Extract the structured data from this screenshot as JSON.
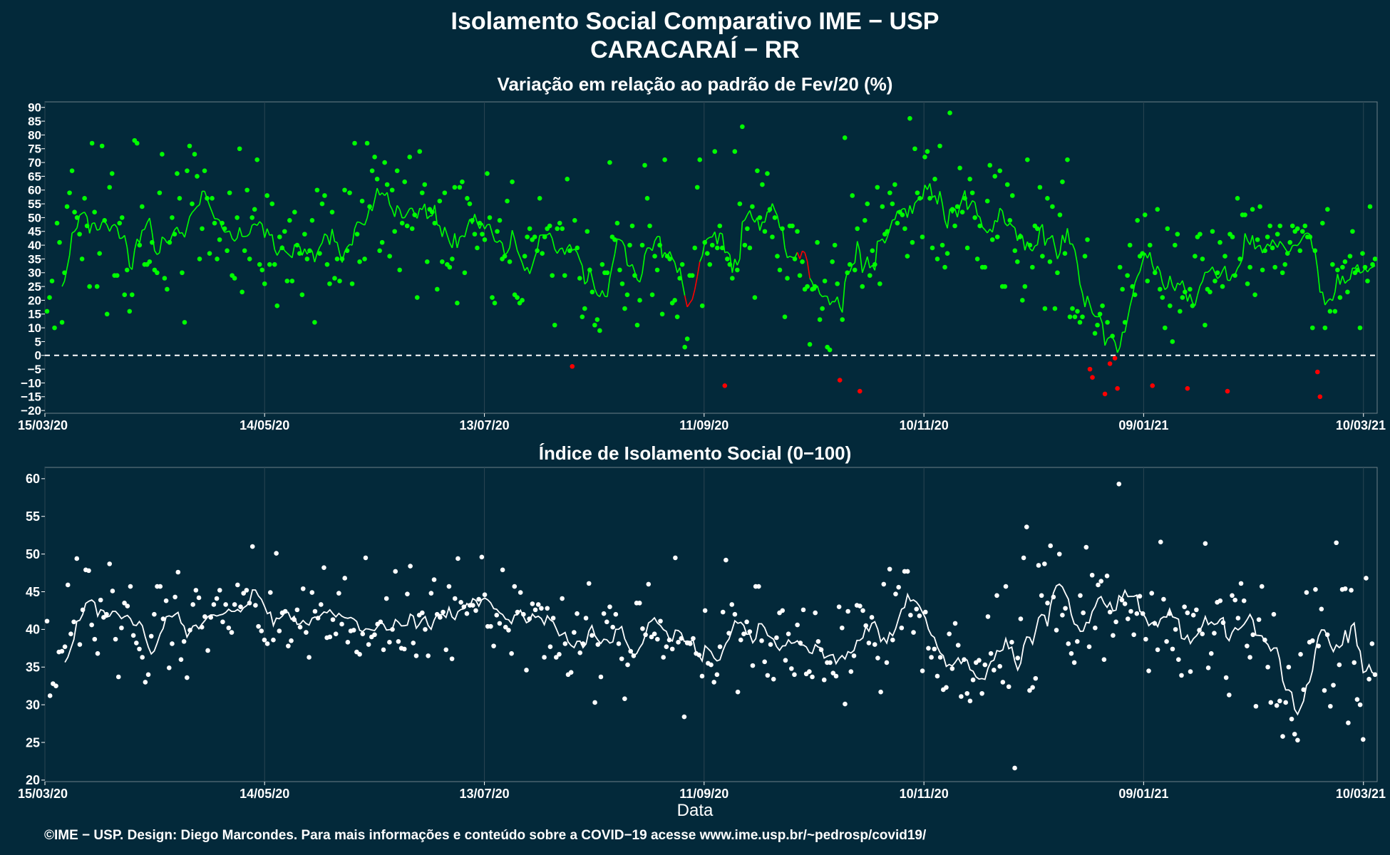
{
  "title_line1": "Isolamento Social Comparativo IME − USP",
  "title_line2": "CARACARAÍ − RR",
  "footer": "©IME − USP. Design: Diego Marcondes. Para mais informações e conteúdo sobre a COVID−19 acesse www.ime.usp.br/~pedrosp/covid19/",
  "colors": {
    "background": "#03293a",
    "positive": "#00ff00",
    "negative": "#ff0000",
    "index": "#ffffff",
    "grid": "#2b4552"
  },
  "chart_data": [
    {
      "type": "scatter",
      "title": "Variação em relação ao padrão de Fev/20 (%)",
      "xlabel": "",
      "ylabel": "",
      "x_start": "15/03/20",
      "x_end": "14/03/21",
      "xtick_labels": [
        "15/03/20",
        "14/05/20",
        "13/07/20",
        "11/09/20",
        "10/11/20",
        "09/01/21",
        "10/03/21"
      ],
      "yticks": [
        -20,
        -15,
        -10,
        -5,
        0,
        5,
        10,
        15,
        20,
        25,
        30,
        35,
        40,
        45,
        50,
        55,
        60,
        65,
        70,
        75,
        80,
        85,
        90
      ],
      "ylim": [
        -21,
        92
      ],
      "reference_line": 0,
      "values": [
        16,
        21,
        27,
        10,
        48,
        41,
        12,
        30,
        54,
        59,
        67,
        52,
        50,
        44,
        35,
        57,
        47,
        25,
        77,
        52,
        25,
        37,
        76,
        49,
        15,
        61,
        66,
        29,
        29,
        48,
        50,
        22,
        31,
        16,
        22,
        78,
        77,
        40,
        54,
        33,
        33,
        34,
        41,
        31,
        30,
        59,
        73,
        28,
        24,
        41,
        50,
        44,
        66,
        57,
        30,
        12,
        67,
        76,
        55,
        73,
        65,
        35,
        46,
        67,
        57,
        37,
        57,
        48,
        35,
        42,
        48,
        46,
        38,
        59,
        29,
        28,
        50,
        75,
        23,
        38,
        60,
        35,
        50,
        53,
        71,
        33,
        31,
        26,
        58,
        33,
        55,
        33,
        18,
        43,
        39,
        45,
        27,
        49,
        27,
        52,
        40,
        37,
        22,
        44,
        35,
        38,
        49,
        12,
        60,
        37,
        55,
        58,
        33,
        26,
        52,
        28,
        35,
        27,
        35,
        60,
        38,
        59,
        26,
        77,
        44,
        34,
        56,
        35,
        77,
        54,
        67,
        72,
        64,
        38,
        41,
        70,
        62,
        36,
        60,
        45,
        67,
        31,
        48,
        63,
        47,
        72,
        46,
        51,
        21,
        74,
        59,
        62,
        34,
        53,
        52,
        48,
        24,
        56,
        34,
        59,
        33,
        32,
        35,
        61,
        19,
        61,
        63,
        30,
        57,
        55,
        49,
        44,
        39,
        48,
        44,
        42,
        66,
        50,
        21,
        19,
        45,
        49,
        35,
        36,
        56,
        34,
        63,
        22,
        21,
        19,
        20,
        36,
        43,
        46,
        42,
        43,
        38,
        57,
        37,
        43,
        46,
        47,
        29,
        11,
        46,
        48,
        46,
        29,
        64,
        38,
        -4,
        49,
        39,
        28,
        14,
        17,
        45,
        31,
        23,
        11,
        13,
        9,
        33,
        30,
        30,
        70,
        43,
        42,
        48,
        31,
        26,
        17,
        22,
        40,
        47,
        29,
        11,
        20,
        40,
        69,
        57,
        47,
        22,
        36,
        31,
        40,
        15,
        71,
        36,
        35,
        19,
        20,
        14,
        28,
        33,
        3,
        6,
        29,
        29,
        39,
        61,
        71,
        18,
        41,
        37,
        33,
        40,
        74,
        39,
        47,
        39,
        -11,
        35,
        33,
        28,
        74,
        31,
        55,
        83,
        40,
        46,
        39,
        54,
        21,
        67,
        50,
        62,
        45,
        66,
        53,
        43,
        50,
        36,
        31,
        46,
        14,
        28,
        47,
        47,
        35,
        45,
        29,
        34,
        24,
        25,
        4,
        24,
        25,
        41,
        13,
        17,
        27,
        3,
        2,
        34,
        40,
        26,
        -9,
        13,
        79,
        30,
        33,
        58,
        31,
        46,
        -13,
        25,
        49,
        55,
        29,
        38,
        33,
        61,
        26,
        54,
        44,
        45,
        59,
        55,
        62,
        48,
        52,
        51,
        46,
        36,
        86,
        41,
        75,
        59,
        57,
        43,
        72,
        74,
        57,
        39,
        64,
        35,
        76,
        40,
        32,
        37,
        88,
        53,
        47,
        54,
        68,
        52,
        57,
        39,
        64,
        59,
        50,
        35,
        47,
        32,
        32,
        56,
        69,
        42,
        65,
        43,
        67,
        25,
        25,
        62,
        49,
        58,
        38,
        34,
        43,
        20,
        25,
        71,
        40,
        32,
        47,
        46,
        61,
        36,
        17,
        57,
        34,
        54,
        17,
        30,
        51,
        63,
        37,
        71,
        14,
        17,
        14,
        16,
        12,
        14,
        36,
        42,
        -5,
        -8,
        8,
        11,
        15,
        18,
        -14,
        12,
        -3,
        7,
        -1,
        -12,
        32,
        24,
        12,
        29,
        40,
        25,
        22,
        49,
        36,
        37,
        51,
        27,
        40,
        -11,
        30,
        53,
        24,
        21,
        10,
        46,
        18,
        5,
        40,
        44,
        16,
        21,
        23,
        -12,
        24,
        18,
        36,
        43,
        44,
        35,
        11,
        24,
        23,
        45,
        27,
        30,
        41,
        25,
        36,
        -13,
        44,
        43,
        29,
        57,
        35,
        51,
        51,
        26,
        32,
        53,
        22,
        42,
        54,
        31,
        38,
        43,
        47,
        39,
        32,
        44,
        47,
        30,
        33,
        37,
        41,
        47,
        45,
        46,
        38,
        45,
        47,
        43,
        43,
        10,
        38,
        -6,
        -15,
        48,
        10,
        53,
        16,
        33,
        16,
        31,
        21,
        32,
        34,
        23,
        36,
        45,
        30,
        31,
        10,
        37,
        32,
        27,
        54,
        33,
        35
      ]
    },
    {
      "type": "scatter",
      "title": "Índice de Isolamento Social (0−100)",
      "xlabel": "Data",
      "ylabel": "",
      "x_start": "15/03/20",
      "x_end": "14/03/21",
      "xtick_labels": [
        "15/03/20",
        "14/05/20",
        "13/07/20",
        "11/09/20",
        "10/11/20",
        "09/01/21",
        "10/03/21"
      ],
      "yticks": [
        20,
        25,
        30,
        35,
        40,
        45,
        50,
        55,
        60
      ],
      "ylim": [
        19.8,
        61.5
      ],
      "values": [
        41.1,
        31.2,
        32.8,
        32.5,
        37.0,
        37.1,
        37.7,
        45.9,
        39.4,
        41.0,
        49.4,
        38.0,
        42.6,
        47.9,
        47.8,
        40.6,
        38.7,
        36.8,
        43.9,
        41.6,
        42.0,
        48.7,
        45.1,
        38.7,
        33.7,
        40.2,
        43.5,
        43.1,
        45.7,
        39.2,
        38.2,
        37.4,
        36.3,
        33.0,
        34.0,
        39.1,
        42.0,
        45.7,
        45.7,
        41.4,
        43.8,
        34.9,
        38.1,
        44.3,
        47.6,
        36.0,
        38.4,
        33.6,
        39.9,
        43.3,
        45.2,
        44.2,
        40.3,
        41.7,
        37.2,
        41.6,
        43.3,
        44.1,
        45.2,
        41.0,
        43.3,
        40.2,
        39.6,
        43.3,
        45.9,
        43.0,
        44.8,
        45.2,
        43.5,
        51.0,
        43.2,
        40.4,
        39.8,
        38.6,
        38.1,
        44.9,
        38.6,
        50.1,
        39.8,
        42.2,
        42.4,
        37.8,
        38.5,
        41.3,
        42.6,
        40.3,
        45.4,
        39.6,
        36.3,
        44.9,
        42.4,
        41.5,
        43.3,
        48.2,
        38.9,
        39.0,
        41.3,
        39.4,
        44.8,
        40.7,
        46.8,
        38.3,
        39.8,
        39.9,
        37.0,
        36.7,
        39.4,
        49.5,
        38.0,
        39.0,
        39.3,
        40.7,
        41.0,
        37.3,
        44.1,
        38.3,
        40.0,
        47.7,
        38.4,
        37.5,
        37.4,
        44.7,
        48.4,
        38.2,
        36.5,
        41.9,
        42.2,
        40.0,
        36.5,
        44.8,
        46.6,
        42.0,
        41.6,
        42.3,
        37.3,
        45.7,
        36.1,
        44.1,
        49.4,
        43.6,
        43.0,
        42.1,
        43.2,
        43.2,
        42.5,
        44.0,
        49.6,
        44.6,
        40.4,
        40.4,
        37.8,
        41.9,
        40.8,
        47.9,
        40.3,
        39.9,
        36.8,
        45.7,
        42.3,
        44.9,
        42.0,
        34.6,
        41.4,
        43.4,
        42.6,
        43.3,
        42.8,
        36.3,
        42.8,
        37.7,
        41.5,
        36.3,
        36.7,
        44.1,
        38.1,
        34.0,
        34.3,
        39.6,
        42.1,
        36.9,
        38.1,
        41.5,
        46.1,
        39.2,
        30.3,
        38.0,
        33.7,
        42.1,
        41.0,
        43.0,
        40.3,
        42.0,
        38.1,
        36.1,
        30.8,
        35.3,
        37.1,
        36.5,
        43.5,
        43.5,
        40.1,
        39.3,
        46.0,
        39.0,
        39.4,
        38.7,
        41.1,
        36.3,
        37.7,
        38.6,
        37.4,
        49.5,
        38.3,
        38.8,
        28.4,
        38.2,
        38.1,
        38.8,
        36.8,
        36.6,
        33.8,
        42.5,
        35.5,
        35.3,
        33.0,
        34.0,
        37.7,
        42.3,
        49.2,
        39.5,
        43.3,
        42.0,
        31.7,
        38.6,
        39.4,
        41.0,
        39.7,
        35.2,
        45.7,
        45.7,
        38.5,
        35.7,
        33.9,
        38.0,
        33.4,
        38.9,
        42.2,
        42.5,
        35.9,
        39.4,
        34.8,
        34.0,
        40.6,
        38.2,
        42.6,
        34.1,
        34.4,
        33.7,
        42.2,
        38.4,
        37.3,
        33.3,
        35.6,
        35.6,
        34.2,
        33.8,
        43.0,
        40.2,
        30.1,
        42.4,
        34.4,
        36.5,
        43.2,
        43.1,
        42.5,
        40.5,
        38.2,
        41.6,
        38.0,
        36.2,
        31.7,
        46.0,
        35.6,
        48.0,
        38.6,
        44.7,
        45.6,
        40.2,
        47.7,
        47.7,
        41.9,
        39.6,
        42.7,
        41.8,
        34.5,
        42.3,
        37.5,
        36.3,
        37.4,
        33.8,
        36.3,
        32.0,
        32.3,
        39.4,
        34.8,
        40.8,
        37.9,
        31.1,
        36.0,
        31.5,
        30.5,
        33.3,
        35.6,
        35.9,
        31.5,
        35.3,
        41.7,
        36.8,
        34.6,
        44.5,
        35.1,
        33.0,
        45.7,
        32.4,
        38.3,
        21.6,
        36.2,
        41.4,
        49.5,
        53.6,
        31.9,
        32.3,
        33.5,
        48.5,
        44.5,
        48.7,
        43.5,
        51.1,
        44.3,
        39.9,
        50.0,
        41.9,
        42.8,
        38.1,
        36.8,
        35.6,
        38.4,
        44.5,
        42.2,
        50.9,
        37.7,
        47.2,
        40.2,
        45.9,
        46.4,
        36.0,
        47.1,
        42.3,
        39.2,
        41.0,
        59.3,
        43.9,
        43.4,
        41.4,
        42.4,
        39.3,
        42.1,
        44.4,
        42.1,
        38.7,
        34.5,
        44.8,
        40.8,
        37.3,
        51.6,
        44.0,
        38.4,
        42.1,
        37.4,
        40.0,
        36.0,
        33.9,
        43.0,
        42.2,
        34.4,
        41.9,
        42.6,
        39.9,
        39.4,
        51.4,
        34.9,
        36.8,
        39.5,
        43.6,
        43.8,
        40.9,
        33.6,
        31.3,
        44.5,
        43.9,
        41.5,
        46.1,
        43.8,
        37.8,
        36.3,
        39.3,
        29.8,
        41.3,
        45.7,
        38.6,
        35.0,
        30.3,
        42.0,
        29.9,
        30.5,
        25.8,
        30.3,
        35.0,
        28.1,
        26.1,
        25.3,
        36.7,
        32.0,
        44.9,
        38.3,
        38.5,
        45.3,
        37.8,
        42.7,
        31.9,
        39.3,
        29.8,
        32.6,
        51.5,
        35.3,
        45.3,
        45.4,
        27.6,
        45.2,
        35.6,
        30.7,
        30.0,
        25.4,
        46.8,
        33.4,
        38.1,
        34.0
      ]
    }
  ]
}
